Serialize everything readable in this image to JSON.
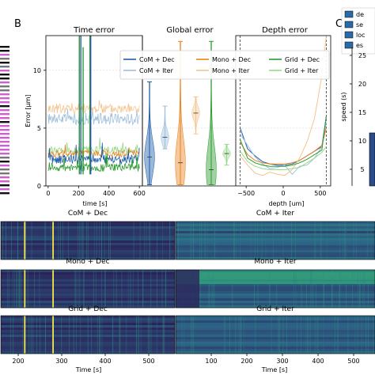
{
  "panel_labels": {
    "b": "B",
    "c": "C"
  },
  "colors": {
    "com_dec": "#1f5ea8",
    "com_iter": "#9fbfdd",
    "mono_dec": "#e8821e",
    "mono_iter": "#f6c48f",
    "grid_dec": "#2b9a2e",
    "grid_iter": "#9ad88a",
    "heat_low": "#2a0d4a",
    "heat_mid": "#2c6f8e",
    "heat_high": "#33b57a",
    "heat_peak": "#f0e64a"
  },
  "chart_data": [
    {
      "id": "time_error",
      "type": "line",
      "title": "Time error",
      "xlabel": "time [s]",
      "ylabel": "Error [μm]",
      "xlim": [
        -15,
        620
      ],
      "ylim": [
        0,
        13
      ],
      "xticks": [
        "0",
        "200",
        "400",
        "600"
      ],
      "xtick_values": [
        0,
        200,
        400,
        600
      ],
      "yticks": [
        "0",
        "5",
        "10"
      ],
      "ytick_values": [
        0,
        5,
        10
      ],
      "grid": true,
      "series": [
        {
          "name": "CoM + Iter",
          "color_key": "com_iter",
          "level": 5.8,
          "spread": 0.5
        },
        {
          "name": "Mono + Iter",
          "color_key": "mono_iter",
          "level": 6.7,
          "spread": 0.45
        },
        {
          "name": "Grid + Iter",
          "color_key": "grid_iter",
          "level": 3.1,
          "spread": 0.3
        },
        {
          "name": "Mono + Dec",
          "color_key": "mono_dec",
          "level": 2.8,
          "spread": 0.3
        },
        {
          "name": "CoM + Dec",
          "color_key": "com_dec",
          "level": 2.3,
          "spread": 0.4
        },
        {
          "name": "Grid + Dec",
          "color_key": "grid_dec",
          "level": 1.6,
          "spread": 0.35
        }
      ],
      "spikes": [
        {
          "x": 205,
          "y": 13,
          "color_key": "grid_dec"
        },
        {
          "x": 215,
          "y": 13,
          "color_key": "com_dec"
        },
        {
          "x": 230,
          "y": 12,
          "color_key": "grid_dec"
        },
        {
          "x": 275,
          "y": 13,
          "color_key": "grid_dec"
        },
        {
          "x": 280,
          "y": 13,
          "color_key": "com_dec"
        }
      ]
    },
    {
      "id": "global_error",
      "type": "violin",
      "title": "Global error",
      "ylim": [
        0,
        13
      ],
      "series": [
        {
          "name": "CoM + Dec",
          "color_key": "com_dec",
          "median": 2.5,
          "min": 0.1,
          "max": 9.0
        },
        {
          "name": "CoM + Iter",
          "color_key": "com_iter",
          "median": 4.2,
          "min": 3.2,
          "max": 6.9
        },
        {
          "name": "Mono + Dec",
          "color_key": "mono_dec",
          "median": 2.0,
          "min": 0.1,
          "max": 12.5
        },
        {
          "name": "Mono + Iter",
          "color_key": "mono_iter",
          "median": 6.3,
          "min": 4.5,
          "max": 7.7
        },
        {
          "name": "Grid + Dec",
          "color_key": "grid_dec",
          "median": 1.4,
          "min": 0.1,
          "max": 12.5
        },
        {
          "name": "Grid + Iter",
          "color_key": "grid_iter",
          "median": 2.8,
          "min": 1.8,
          "max": 3.6
        }
      ]
    },
    {
      "id": "depth_error",
      "type": "line",
      "title": "Depth error",
      "xlabel": "depth [um]",
      "xlim": [
        -640,
        640
      ],
      "ylim": [
        0,
        13
      ],
      "xticks": [
        "−500",
        "0",
        "500"
      ],
      "xtick_values": [
        -500,
        0,
        500
      ],
      "vlines": [
        -580,
        580
      ],
      "x": [
        -580,
        -480,
        -380,
        -280,
        -180,
        -80,
        20,
        120,
        220,
        320,
        420,
        520,
        580
      ],
      "series": [
        {
          "name": "CoM + Dec",
          "color_key": "com_dec",
          "values": [
            5.0,
            3.2,
            2.6,
            2.1,
            1.9,
            1.8,
            1.8,
            1.9,
            2.2,
            2.6,
            3.0,
            3.4,
            6.0
          ]
        },
        {
          "name": "CoM + Iter",
          "color_key": "com_iter",
          "values": [
            4.5,
            3.5,
            2.5,
            1.9,
            1.5,
            1.6,
            1.8,
            1.0,
            1.7,
            1.8,
            2.4,
            3.4,
            5.5
          ]
        },
        {
          "name": "Mono + Dec",
          "color_key": "mono_dec",
          "values": [
            3.8,
            2.7,
            2.2,
            2.0,
            1.9,
            1.9,
            1.9,
            2.0,
            2.2,
            2.6,
            3.0,
            3.5,
            5.0
          ]
        },
        {
          "name": "Mono + Iter",
          "color_key": "mono_iter",
          "values": [
            2.6,
            1.8,
            1.1,
            0.9,
            1.2,
            1.0,
            0.9,
            1.4,
            2.4,
            3.8,
            5.8,
            9.5,
            13.0
          ]
        },
        {
          "name": "Grid + Dec",
          "color_key": "grid_dec",
          "values": [
            4.0,
            2.4,
            2.0,
            1.8,
            1.7,
            1.7,
            1.7,
            1.8,
            2.0,
            2.3,
            2.7,
            3.1,
            6.0
          ]
        },
        {
          "name": "Grid + Iter",
          "color_key": "grid_iter",
          "values": [
            3.0,
            2.1,
            1.7,
            1.5,
            1.4,
            1.4,
            1.4,
            1.5,
            1.6,
            2.0,
            2.4,
            2.9,
            3.4
          ]
        }
      ]
    },
    {
      "id": "speed",
      "type": "bar",
      "ylabel": "speed (s)",
      "yticks": [
        "25",
        "20",
        "15",
        "10",
        "5"
      ],
      "legend": [
        "de",
        "se",
        "loc",
        "es"
      ]
    },
    {
      "id": "heatmaps",
      "type": "heatmap",
      "xlabel": "Time [s]",
      "panels_left": [
        "CoM + Dec",
        "Mono + Dec",
        "Grid + Dec"
      ],
      "panels_right": [
        "CoM + Iter",
        "Mono + Iter",
        "Grid + Iter"
      ],
      "left_xticks": [
        "200",
        "300",
        "400",
        "500"
      ],
      "right_xticks": [
        "100",
        "200",
        "300",
        "400",
        "500"
      ],
      "left_xtick_values": [
        200,
        300,
        400,
        500
      ],
      "right_xtick_values": [
        100,
        200,
        300,
        400,
        500
      ],
      "left_xlim": [
        160,
        560
      ],
      "right_xlim": [
        0,
        560
      ],
      "yellow_lines_left": [
        215,
        280
      ]
    }
  ],
  "legend": {
    "entries": [
      {
        "label": "CoM + Dec",
        "color_key": "com_dec"
      },
      {
        "label": "Mono + Dec",
        "color_key": "mono_dec"
      },
      {
        "label": "Grid + Dec",
        "color_key": "grid_dec"
      },
      {
        "label": "CoM + Iter",
        "color_key": "com_iter"
      },
      {
        "label": "Mono + Iter",
        "color_key": "mono_iter"
      },
      {
        "label": "Grid + Iter",
        "color_key": "grid_iter"
      }
    ]
  }
}
